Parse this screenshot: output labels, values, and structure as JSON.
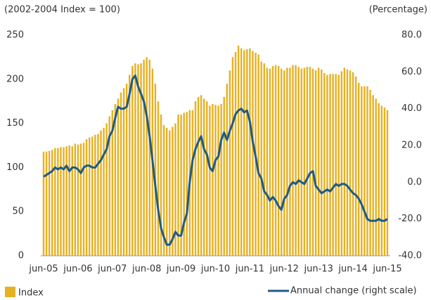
{
  "chart_data": {
    "type": "bar-line",
    "y_label": "(2002-2004 Index = 100)",
    "y2_label": "(Percentage)",
    "categories": [
      "jun-05",
      null,
      null,
      null,
      null,
      null,
      null,
      null,
      null,
      null,
      null,
      null,
      "jun-06",
      null,
      null,
      null,
      null,
      null,
      null,
      null,
      null,
      null,
      null,
      null,
      "jun-07",
      null,
      null,
      null,
      null,
      null,
      null,
      null,
      null,
      null,
      null,
      null,
      "jun-08",
      null,
      null,
      null,
      null,
      null,
      null,
      null,
      null,
      null,
      null,
      null,
      "jun-09",
      null,
      null,
      null,
      null,
      null,
      null,
      null,
      null,
      null,
      null,
      null,
      "jun-10",
      null,
      null,
      null,
      null,
      null,
      null,
      null,
      null,
      null,
      null,
      null,
      "jun-11",
      null,
      null,
      null,
      null,
      null,
      null,
      null,
      null,
      null,
      null,
      null,
      "jun-12",
      null,
      null,
      null,
      null,
      null,
      null,
      null,
      null,
      null,
      null,
      null,
      "jun-13",
      null,
      null,
      null,
      null,
      null,
      null,
      null,
      null,
      null,
      null,
      null,
      "jun-14",
      null,
      null,
      null,
      null,
      null,
      null,
      null,
      null,
      null,
      null,
      null,
      "jun-15"
    ],
    "series": [
      {
        "name": "Index",
        "type": "bar",
        "color": "#e6b123",
        "values": [
          118,
          118,
          119,
          120,
          122,
          122,
          123,
          123,
          124,
          125,
          124,
          127,
          126,
          127,
          128,
          132,
          134,
          135,
          137,
          138,
          142,
          145,
          150,
          158,
          165,
          172,
          178,
          185,
          190,
          195,
          205,
          215,
          218,
          217,
          218,
          222,
          225,
          222,
          212,
          195,
          175,
          160,
          148,
          145,
          142,
          146,
          150,
          160,
          160,
          162,
          163,
          165,
          165,
          175,
          180,
          182,
          178,
          175,
          170,
          172,
          171,
          170,
          172,
          180,
          195,
          210,
          225,
          231,
          238,
          235,
          233,
          234,
          235,
          232,
          230,
          228,
          220,
          218,
          213,
          212,
          215,
          216,
          215,
          212,
          210,
          213,
          213,
          216,
          216,
          214,
          212,
          213,
          214,
          214,
          212,
          210,
          213,
          211,
          207,
          205,
          206,
          206,
          206,
          205,
          209,
          213,
          211,
          210,
          208,
          203,
          196,
          192,
          192,
          192,
          188,
          182,
          178,
          173,
          170,
          168,
          165
        ]
      },
      {
        "name": "Annual change (right scale)",
        "type": "line",
        "axis": "y2",
        "color": "#1d5b86",
        "values": [
          3,
          4,
          5,
          6,
          8,
          7,
          8,
          7,
          9,
          6,
          8,
          8,
          7,
          5,
          8,
          9,
          9,
          8,
          8,
          10,
          12,
          15,
          18,
          25,
          28,
          35,
          41,
          40,
          40,
          41,
          48,
          56,
          58,
          52,
          48,
          44,
          36,
          25,
          12,
          -2,
          -15,
          -25,
          -30,
          -34,
          -34,
          -31,
          -27,
          -29,
          -29,
          -22,
          -17,
          0,
          12,
          18,
          22,
          25,
          18,
          15,
          8,
          6,
          12,
          14,
          23,
          27,
          23,
          28,
          32,
          37,
          39,
          40,
          38,
          39,
          33,
          22,
          14,
          5,
          2,
          -5,
          -7,
          -10,
          -8,
          -10,
          -13,
          -15,
          -9,
          -7,
          -2,
          0,
          -1,
          1,
          0,
          -1,
          2,
          5,
          6,
          -2,
          -4,
          -6,
          -5,
          -4,
          -5,
          -3,
          -1,
          -2,
          -1,
          -1,
          -2,
          -4,
          -6,
          -7,
          -9,
          -12,
          -16,
          -20,
          -21,
          -21,
          -21,
          -20,
          -21,
          -21,
          -20
        ]
      }
    ],
    "ylim": [
      0,
      250
    ],
    "yticks": [
      0,
      50,
      100,
      150,
      200,
      250
    ],
    "y2lim": [
      -40,
      80
    ],
    "y2ticks": [
      {
        "value": -40,
        "label": "-40.0"
      },
      {
        "value": -20,
        "label": "-20.0"
      },
      {
        "value": 0,
        "label": "0.0"
      },
      {
        "value": 20,
        "label": "20.0"
      },
      {
        "value": 40,
        "label": "40.0"
      },
      {
        "value": 60,
        "label": "60.0"
      },
      {
        "value": 80,
        "label": "80.0"
      }
    ],
    "grid": false
  }
}
